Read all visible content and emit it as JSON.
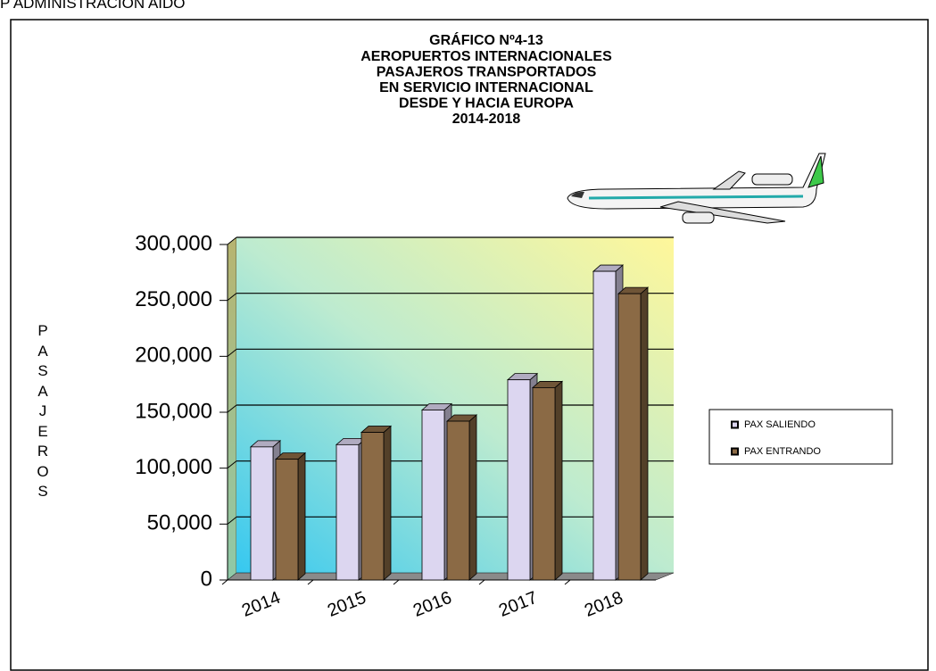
{
  "page_header": "P ADMINISTRACION AIDO",
  "chart_data": {
    "type": "bar",
    "title": [
      "GRÁFICO Nº4-13",
      "AEROPUERTOS INTERNACIONALES",
      "PASAJEROS TRANSPORTADOS",
      "EN SERVICIO INTERNACIONAL",
      "DESDE Y HACIA EUROPA",
      "2014-2018"
    ],
    "y_label": "PASAJEROS",
    "categories": [
      "2014",
      "2015",
      "2016",
      "2017",
      "2018"
    ],
    "series": [
      {
        "name": "PAX SALIENDO",
        "color": "#dcd6f0",
        "values": [
          119000,
          121000,
          152000,
          179000,
          276000
        ]
      },
      {
        "name": "PAX ENTRANDO",
        "color": "#8b6a45",
        "values": [
          108000,
          132000,
          142000,
          172000,
          256000
        ]
      }
    ],
    "ylim": [
      0,
      300000
    ],
    "yticks": [
      0,
      {
        "value": 50000,
        "label": "50,000"
      },
      {
        "value": 100000,
        "label": "100,000"
      },
      {
        "value": 150000,
        "label": "150,000"
      },
      {
        "value": 200000,
        "label": "200,000"
      },
      {
        "value": 250000,
        "label": "250,000"
      },
      {
        "value": 300000,
        "label": "300,000"
      }
    ],
    "grid": true,
    "legend": "right"
  }
}
